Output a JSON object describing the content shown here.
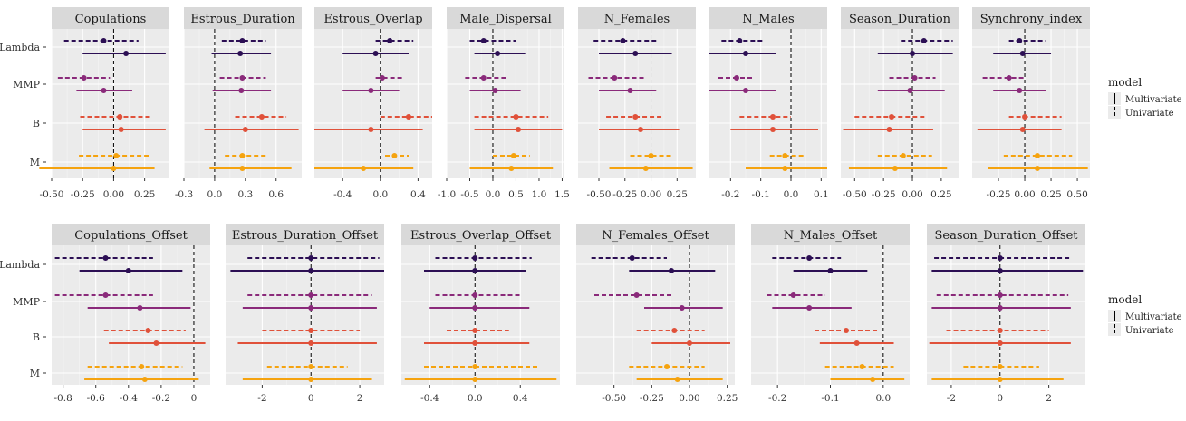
{
  "chart_data": [
    {
      "type": "forest",
      "row_labels": [
        "Lambda",
        "MMP",
        "B",
        "M"
      ],
      "colors": {
        "Lambda": "#2c0f54",
        "MMP": "#8a2a7a",
        "B": "#e0513a",
        "M": "#f5a30f"
      },
      "legend": {
        "title": "model",
        "items": [
          "Multivariate",
          "Univariate"
        ],
        "placement": "right"
      },
      "panels": [
        {
          "name": "Copulations",
          "xlim": [
            -0.5,
            0.45
          ],
          "ticks": [
            -0.5,
            -0.25,
            0,
            0.25
          ],
          "ticklabels": [
            "-0.50",
            "-0.25",
            "0.00",
            "0.25"
          ],
          "zero": 0,
          "series": {
            "Multivariate": {
              "Lambda": [
                0.1,
                -0.25,
                0.42
              ],
              "MMP": [
                -0.08,
                -0.3,
                0.15
              ],
              "B": [
                0.06,
                -0.25,
                0.42
              ],
              "M": [
                0.0,
                -0.6,
                0.33
              ]
            },
            "Univariate": {
              "Lambda": [
                -0.08,
                -0.4,
                0.2
              ],
              "MMP": [
                -0.24,
                -0.45,
                -0.03
              ],
              "B": [
                0.05,
                -0.27,
                0.3
              ],
              "M": [
                0.02,
                -0.28,
                0.3
              ]
            }
          }
        },
        {
          "name": "Estrous_Duration",
          "xlim": [
            -0.3,
            0.85
          ],
          "ticks": [
            -0.3,
            0,
            0.3,
            0.6
          ],
          "ticklabels": [
            "-0.3",
            "0.0",
            "0.3",
            "0.6"
          ],
          "zero": 0,
          "series": {
            "Multivariate": {
              "Lambda": [
                0.25,
                -0.03,
                0.55
              ],
              "MMP": [
                0.26,
                -0.02,
                0.55
              ],
              "B": [
                0.3,
                -0.1,
                0.82
              ],
              "M": [
                0.27,
                -0.05,
                0.75
              ]
            },
            "Univariate": {
              "Lambda": [
                0.27,
                0.07,
                0.5
              ],
              "MMP": [
                0.27,
                0.05,
                0.5
              ],
              "B": [
                0.46,
                0.2,
                0.7
              ],
              "M": [
                0.27,
                0.1,
                0.5
              ]
            }
          }
        },
        {
          "name": "Estrous_Overlap",
          "xlim": [
            -0.7,
            0.55
          ],
          "ticks": [
            -0.4,
            0,
            0.4
          ],
          "ticklabels": [
            "-0.4",
            "0.0",
            "0.4"
          ],
          "zero": 0,
          "series": {
            "Multivariate": {
              "Lambda": [
                -0.05,
                -0.4,
                0.3
              ],
              "MMP": [
                -0.1,
                -0.4,
                0.2
              ],
              "B": [
                -0.1,
                -0.7,
                0.45
              ],
              "M": [
                -0.18,
                -0.7,
                0.35
              ]
            },
            "Univariate": {
              "Lambda": [
                0.1,
                -0.05,
                0.35
              ],
              "MMP": [
                0.02,
                -0.05,
                0.25
              ],
              "B": [
                0.3,
                0.0,
                0.55
              ],
              "M": [
                0.15,
                0.05,
                0.3
              ]
            }
          }
        },
        {
          "name": "Male_Dispersal",
          "xlim": [
            -1.0,
            1.55
          ],
          "ticks": [
            -1.0,
            -0.5,
            0,
            0.5,
            1.0,
            1.5
          ],
          "ticklabels": [
            "-1.0",
            "-0.5",
            "0.0",
            "0.5",
            "1.0",
            "1.5"
          ],
          "zero": 0,
          "series": {
            "Multivariate": {
              "Lambda": [
                0.1,
                -0.4,
                0.7
              ],
              "MMP": [
                0.05,
                -0.5,
                0.6
              ],
              "B": [
                0.55,
                -0.4,
                1.5
              ],
              "M": [
                0.4,
                -0.5,
                1.3
              ]
            },
            "Univariate": {
              "Lambda": [
                -0.2,
                -0.5,
                0.5
              ],
              "MMP": [
                -0.2,
                -0.6,
                0.3
              ],
              "B": [
                0.5,
                -0.4,
                1.2
              ],
              "M": [
                0.45,
                0.0,
                0.8
              ]
            }
          }
        },
        {
          "name": "N_Females",
          "xlim": [
            -0.7,
            0.43
          ],
          "ticks": [
            -0.5,
            -0.25,
            0,
            0.25
          ],
          "ticklabels": [
            "-0.50",
            "-0.25",
            "0.00",
            "0.25"
          ],
          "zero": 0,
          "series": {
            "Multivariate": {
              "Lambda": [
                -0.15,
                -0.5,
                0.2
              ],
              "MMP": [
                -0.2,
                -0.5,
                0.05
              ],
              "B": [
                -0.1,
                -0.5,
                0.27
              ],
              "M": [
                -0.05,
                -0.4,
                0.4
              ]
            },
            "Univariate": {
              "Lambda": [
                -0.27,
                -0.55,
                0.05
              ],
              "MMP": [
                -0.35,
                -0.6,
                -0.05
              ],
              "B": [
                -0.15,
                -0.43,
                0.1
              ],
              "M": [
                0.0,
                -0.2,
                0.2
              ]
            }
          }
        },
        {
          "name": "N_Males",
          "xlim": [
            -0.27,
            0.12
          ],
          "ticks": [
            -0.2,
            -0.1,
            0,
            0.1
          ],
          "ticklabels": [
            "-0.2",
            "-0.1",
            "0.0",
            "0.1"
          ],
          "zero": 0,
          "series": {
            "Multivariate": {
              "Lambda": [
                -0.15,
                -0.27,
                -0.05
              ],
              "MMP": [
                -0.15,
                -0.27,
                -0.05
              ],
              "B": [
                -0.06,
                -0.2,
                0.09
              ],
              "M": [
                -0.02,
                -0.15,
                0.12
              ]
            },
            "Univariate": {
              "Lambda": [
                -0.17,
                -0.23,
                -0.09
              ],
              "MMP": [
                -0.18,
                -0.24,
                -0.12
              ],
              "B": [
                -0.06,
                -0.17,
                0.0
              ],
              "M": [
                -0.02,
                -0.07,
                0.05
              ]
            }
          }
        },
        {
          "name": "Season_Duration",
          "xlim": [
            -0.62,
            0.4
          ],
          "ticks": [
            -0.5,
            -0.25,
            0,
            0.25
          ],
          "ticklabels": [
            "-0.50",
            "-0.25",
            "0.00",
            "0.25"
          ],
          "zero": 0,
          "series": {
            "Multivariate": {
              "Lambda": [
                0.0,
                -0.3,
                0.35
              ],
              "MMP": [
                -0.02,
                -0.3,
                0.28
              ],
              "B": [
                -0.2,
                -0.6,
                0.18
              ],
              "M": [
                -0.15,
                -0.55,
                0.3
              ]
            },
            "Univariate": {
              "Lambda": [
                0.1,
                -0.1,
                0.35
              ],
              "MMP": [
                0.02,
                -0.2,
                0.2
              ],
              "B": [
                -0.18,
                -0.5,
                0.12
              ],
              "M": [
                -0.08,
                -0.3,
                0.17
              ]
            }
          }
        },
        {
          "name": "Synchrony_index",
          "xlim": [
            -0.5,
            0.62
          ],
          "ticks": [
            -0.25,
            0,
            0.25,
            0.5
          ],
          "ticklabels": [
            "-0.25",
            "0.00",
            "0.25",
            "0.50"
          ],
          "zero": 0,
          "series": {
            "Multivariate": {
              "Lambda": [
                -0.02,
                -0.3,
                0.25
              ],
              "MMP": [
                -0.05,
                -0.3,
                0.2
              ],
              "B": [
                -0.02,
                -0.45,
                0.35
              ],
              "M": [
                0.12,
                -0.35,
                0.6
              ]
            },
            "Univariate": {
              "Lambda": [
                -0.05,
                -0.15,
                0.2
              ],
              "MMP": [
                -0.15,
                -0.4,
                0.0
              ],
              "B": [
                0.0,
                -0.15,
                0.35
              ],
              "M": [
                0.12,
                -0.2,
                0.45
              ]
            }
          }
        }
      ]
    },
    {
      "type": "forest",
      "row_labels": [
        "Lambda",
        "MMP",
        "B",
        "M"
      ],
      "colors": {
        "Lambda": "#2c0f54",
        "MMP": "#8a2a7a",
        "B": "#e0513a",
        "M": "#f5a30f"
      },
      "legend": {
        "title": "model",
        "items": [
          "Multivariate",
          "Univariate"
        ],
        "placement": "right"
      },
      "panels": [
        {
          "name": "Copulations_Offset",
          "xlim": [
            -0.87,
            0.1
          ],
          "ticks": [
            -0.8,
            -0.6,
            -0.4,
            -0.2,
            0
          ],
          "ticklabels": [
            "-0.8",
            "-0.6",
            "-0.4",
            "-0.2",
            "0"
          ],
          "zero": 0,
          "series": {
            "Multivariate": {
              "Lambda": [
                -0.4,
                -0.7,
                -0.07
              ],
              "MMP": [
                -0.33,
                -0.65,
                -0.02
              ],
              "B": [
                -0.23,
                -0.52,
                0.07
              ],
              "M": [
                -0.3,
                -0.67,
                0.03
              ]
            },
            "Univariate": {
              "Lambda": [
                -0.54,
                -0.85,
                -0.25
              ],
              "MMP": [
                -0.54,
                -0.85,
                -0.25
              ],
              "B": [
                -0.28,
                -0.55,
                -0.05
              ],
              "M": [
                -0.32,
                -0.65,
                -0.07
              ]
            }
          }
        },
        {
          "name": "Estrous_Duration_Offset",
          "xlim": [
            -3.5,
            3.0
          ],
          "ticks": [
            -2,
            0,
            2
          ],
          "ticklabels": [
            "-2",
            "0",
            "2"
          ],
          "zero": 0,
          "series": {
            "Multivariate": {
              "Lambda": [
                0.0,
                -3.3,
                3.0
              ],
              "MMP": [
                0.0,
                -2.8,
                2.7
              ],
              "B": [
                0.0,
                -3.0,
                2.7
              ],
              "M": [
                0.0,
                -2.8,
                2.5
              ]
            },
            "Univariate": {
              "Lambda": [
                0.0,
                -2.6,
                2.8
              ],
              "MMP": [
                0.0,
                -2.6,
                2.5
              ],
              "B": [
                0.0,
                -2.0,
                2.0
              ],
              "M": [
                0.0,
                -1.8,
                1.5
              ]
            }
          }
        },
        {
          "name": "Estrous_Overlap_Offset",
          "xlim": [
            -0.65,
            0.75
          ],
          "ticks": [
            -0.4,
            0,
            0.4
          ],
          "ticklabels": [
            "-0.4",
            "0.0",
            "0.4"
          ],
          "zero": 0,
          "series": {
            "Multivariate": {
              "Lambda": [
                0.0,
                -0.45,
                0.45
              ],
              "MMP": [
                0.0,
                -0.4,
                0.48
              ],
              "B": [
                0.0,
                -0.45,
                0.48
              ],
              "M": [
                0.0,
                -0.62,
                0.72
              ]
            },
            "Univariate": {
              "Lambda": [
                0.0,
                -0.35,
                0.5
              ],
              "MMP": [
                0.0,
                -0.35,
                0.4
              ],
              "B": [
                0.0,
                -0.25,
                0.3
              ],
              "M": [
                0.0,
                -0.45,
                0.55
              ]
            }
          }
        },
        {
          "name": "N_Females_Offset",
          "xlim": [
            -0.75,
            0.3
          ],
          "ticks": [
            -0.5,
            -0.25,
            0,
            0.25
          ],
          "ticklabels": [
            "-0.50",
            "-0.25",
            "0.00",
            "0.25"
          ],
          "zero": 0,
          "series": {
            "Multivariate": {
              "Lambda": [
                -0.12,
                -0.4,
                0.17
              ],
              "MMP": [
                -0.05,
                -0.3,
                0.22
              ],
              "B": [
                0.0,
                -0.25,
                0.27
              ],
              "M": [
                -0.08,
                -0.35,
                0.22
              ]
            },
            "Univariate": {
              "Lambda": [
                -0.38,
                -0.65,
                -0.15
              ],
              "MMP": [
                -0.35,
                -0.63,
                -0.12
              ],
              "B": [
                -0.1,
                -0.35,
                0.1
              ],
              "M": [
                -0.15,
                -0.4,
                0.1
              ]
            }
          }
        },
        {
          "name": "N_Males_Offset",
          "xlim": [
            -0.25,
            0.05
          ],
          "ticks": [
            -0.2,
            -0.1,
            0
          ],
          "ticklabels": [
            "-0.2",
            "-0.1",
            "0.0"
          ],
          "zero": 0,
          "series": {
            "Multivariate": {
              "Lambda": [
                -0.1,
                -0.17,
                -0.03
              ],
              "MMP": [
                -0.14,
                -0.21,
                -0.06
              ],
              "B": [
                -0.05,
                -0.12,
                0.02
              ],
              "M": [
                -0.02,
                -0.1,
                0.04
              ]
            },
            "Univariate": {
              "Lambda": [
                -0.14,
                -0.21,
                -0.08
              ],
              "MMP": [
                -0.17,
                -0.22,
                -0.11
              ],
              "B": [
                -0.07,
                -0.13,
                -0.01
              ],
              "M": [
                -0.04,
                -0.11,
                0.02
              ]
            }
          }
        },
        {
          "name": "Season_Duration_Offset",
          "xlim": [
            -3.0,
            3.5
          ],
          "ticks": [
            -2,
            0,
            2
          ],
          "ticklabels": [
            "-2",
            "0",
            "2"
          ],
          "zero": 0,
          "series": {
            "Multivariate": {
              "Lambda": [
                0.0,
                -2.8,
                3.4
              ],
              "MMP": [
                0.0,
                -2.8,
                2.9
              ],
              "B": [
                0.0,
                -2.9,
                2.9
              ],
              "M": [
                0.0,
                -2.8,
                2.6
              ]
            },
            "Univariate": {
              "Lambda": [
                0.0,
                -2.7,
                2.9
              ],
              "MMP": [
                0.0,
                -2.6,
                2.8
              ],
              "B": [
                0.0,
                -2.2,
                2.0
              ],
              "M": [
                0.0,
                -1.5,
                1.6
              ]
            }
          }
        }
      ]
    }
  ]
}
